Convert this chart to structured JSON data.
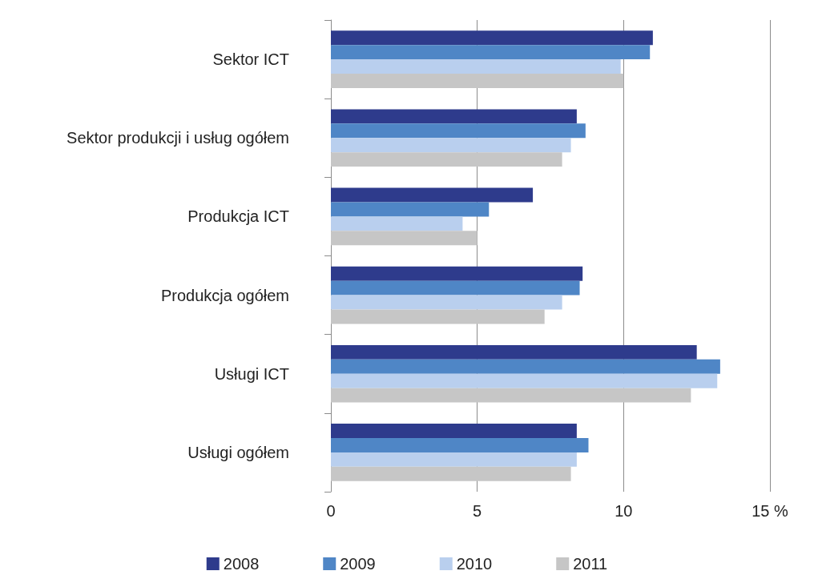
{
  "chart_data": {
    "type": "bar",
    "orientation": "horizontal",
    "categories": [
      "Sektor ICT",
      "Sektor produkcji i usług ogółem",
      "Produkcja ICT",
      "Produkcja ogółem",
      "Usługi ICT",
      "Usługi ogółem"
    ],
    "series": [
      {
        "name": "2008",
        "color": "#2e3b8c",
        "values": [
          11.0,
          8.4,
          6.9,
          8.6,
          12.5,
          8.4
        ]
      },
      {
        "name": "2009",
        "color": "#4f86c6",
        "values": [
          10.9,
          8.7,
          5.4,
          8.5,
          13.3,
          8.8
        ]
      },
      {
        "name": "2010",
        "color": "#b9cfee",
        "values": [
          9.9,
          8.2,
          4.5,
          7.9,
          13.2,
          8.4
        ]
      },
      {
        "name": "2011",
        "color": "#c6c6c6",
        "values": [
          10.0,
          7.9,
          5.0,
          7.3,
          12.3,
          8.2
        ]
      }
    ],
    "xlim": [
      0,
      15
    ],
    "xticks": [
      0,
      5,
      10,
      {
        "value": 15,
        "label": "15 %"
      }
    ],
    "grid": "x",
    "legend": "bottom"
  }
}
